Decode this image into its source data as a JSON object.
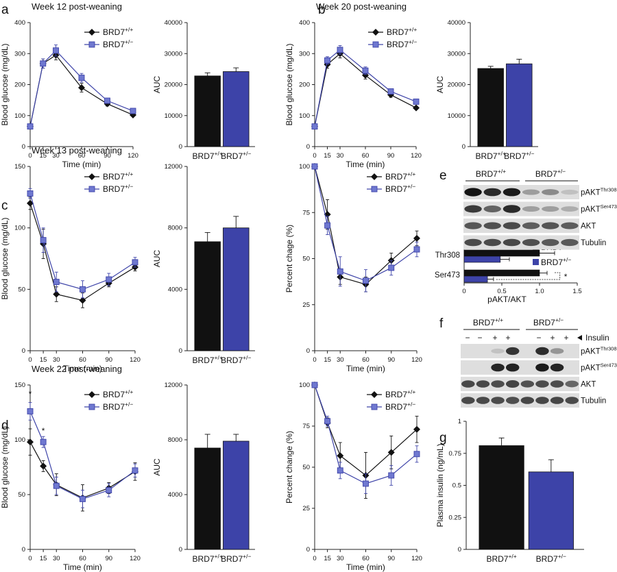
{
  "colors": {
    "wt": "#111111",
    "het": "#3d43a8",
    "het_marker": "#6f78d0"
  },
  "chart_data": [
    {
      "id": "a_line",
      "type": "line",
      "panel": "a",
      "title": "Week 12 post-weaning",
      "xlabel": "Time (min)",
      "ylabel": "Blood glucose (mg/dL)",
      "x": [
        0,
        15,
        30,
        60,
        90,
        120
      ],
      "ylim": [
        0,
        400
      ],
      "yticks": [
        0,
        100,
        200,
        300,
        400
      ],
      "series": [
        {
          "name": "BRD7",
          "sup": "+/+",
          "marker": "diamond",
          "values": [
            65,
            268,
            295,
            190,
            138,
            102
          ],
          "err": [
            5,
            15,
            15,
            14,
            7,
            5
          ]
        },
        {
          "name": "BRD7",
          "sup": "+/−",
          "marker": "square",
          "values": [
            65,
            268,
            310,
            222,
            148,
            115
          ],
          "err": [
            5,
            15,
            18,
            14,
            7,
            6
          ]
        }
      ]
    },
    {
      "id": "a_bar",
      "type": "bar",
      "panel": "a",
      "ylabel": "AUC",
      "categories": [
        "BRD7+/+",
        "BRD7+/−"
      ],
      "cat_base": [
        "BRD7",
        "BRD7"
      ],
      "cat_sup": [
        "+/+",
        "+/−"
      ],
      "values": [
        22800,
        24200
      ],
      "err": [
        1000,
        1200
      ],
      "ylim": [
        0,
        40000
      ],
      "yticks": [
        0,
        10000,
        20000,
        30000,
        40000
      ]
    },
    {
      "id": "b_line",
      "type": "line",
      "panel": "b",
      "title": "Week 20 post-weaning",
      "xlabel": "Time (min)",
      "ylabel": "Blood glucose (mg/dL)",
      "x": [
        0,
        15,
        30,
        60,
        90,
        120
      ],
      "ylim": [
        0,
        400
      ],
      "yticks": [
        0,
        100,
        200,
        300,
        400
      ],
      "series": [
        {
          "name": "BRD7",
          "sup": "+/+",
          "marker": "diamond",
          "values": [
            65,
            265,
            300,
            230,
            167,
            125
          ],
          "err": [
            5,
            12,
            14,
            12,
            8,
            5
          ]
        },
        {
          "name": "BRD7",
          "sup": "+/−",
          "marker": "square",
          "values": [
            65,
            278,
            312,
            245,
            178,
            145
          ],
          "err": [
            5,
            12,
            14,
            12,
            8,
            6
          ]
        }
      ]
    },
    {
      "id": "b_bar",
      "type": "bar",
      "panel": "b",
      "ylabel": "AUC",
      "categories": [
        "BRD7+/+",
        "BRD7+/−"
      ],
      "cat_base": [
        "BRD7",
        "BRD7"
      ],
      "cat_sup": [
        "+/+",
        "+/−"
      ],
      "values": [
        25200,
        26700
      ],
      "err": [
        700,
        1500
      ],
      "ylim": [
        0,
        40000
      ],
      "yticks": [
        0,
        10000,
        20000,
        30000,
        40000
      ]
    },
    {
      "id": "c_line",
      "type": "line",
      "panel": "c",
      "title": "Week 13 post-weaning",
      "xlabel": "Time (min)",
      "ylabel": "Blood glucose (mg/dL)",
      "x": [
        0,
        15,
        30,
        60,
        90,
        120
      ],
      "ylim": [
        0,
        150
      ],
      "yticks": [
        0,
        50,
        100,
        150
      ],
      "series": [
        {
          "name": "BRD7",
          "sup": "+/+",
          "marker": "diamond",
          "values": [
            120,
            87,
            46,
            41,
            55,
            68
          ],
          "err": [
            5,
            12,
            6,
            6,
            3,
            3
          ]
        },
        {
          "name": "BRD7",
          "sup": "+/−",
          "marker": "square",
          "values": [
            128,
            90,
            56,
            50,
            58,
            72
          ],
          "err": [
            4,
            10,
            8,
            7,
            5,
            4
          ]
        }
      ]
    },
    {
      "id": "c_bar",
      "type": "bar",
      "panel": "c",
      "ylabel": "AUC",
      "categories": [
        "BRD7+/+",
        "BRD7+/−"
      ],
      "cat_base": [
        "BRD7",
        "BRD7"
      ],
      "cat_sup": [
        "+/+",
        "+/−"
      ],
      "values": [
        7100,
        8000
      ],
      "err": [
        600,
        750
      ],
      "ylim": [
        0,
        12000
      ],
      "yticks": [
        0,
        4000,
        8000,
        12000
      ]
    },
    {
      "id": "c_pct",
      "type": "line",
      "panel": "c",
      "xlabel": "Time (min)",
      "ylabel": "Percent chage (%)",
      "x": [
        0,
        15,
        30,
        60,
        90,
        120
      ],
      "ylim": [
        0,
        100
      ],
      "yticks": [
        0,
        25,
        50,
        75,
        100
      ],
      "series": [
        {
          "name": "BRD7",
          "sup": "+/+",
          "marker": "diamond",
          "values": [
            100,
            74,
            40,
            36,
            49,
            61
          ],
          "err": [
            0,
            8,
            4,
            4,
            4,
            4
          ]
        },
        {
          "name": "BRD7",
          "sup": "+/−",
          "marker": "square",
          "values": [
            100,
            68,
            43,
            38,
            45,
            55
          ],
          "err": [
            0,
            5,
            8,
            6,
            4,
            4
          ]
        }
      ]
    },
    {
      "id": "d_line",
      "type": "line",
      "panel": "d",
      "title": "Week 22 post-weaning",
      "xlabel": "Time (min)",
      "ylabel": "Blood glucose (mg/dL)",
      "x": [
        0,
        15,
        30,
        60,
        90,
        120
      ],
      "ylim": [
        0,
        150
      ],
      "yticks": [
        0,
        50,
        100,
        150
      ],
      "stars": [
        {
          "x": 0,
          "y": 142
        },
        {
          "x": 15,
          "y": 108
        }
      ],
      "series": [
        {
          "name": "BRD7",
          "sup": "+/+",
          "marker": "diamond",
          "values": [
            98,
            76,
            59,
            47,
            56,
            71
          ],
          "err": [
            12,
            5,
            10,
            12,
            5,
            8
          ]
        },
        {
          "name": "BRD7",
          "sup": "+/−",
          "marker": "square",
          "values": [
            126,
            98,
            58,
            46,
            54,
            72
          ],
          "err": [
            8,
            5,
            8,
            8,
            6,
            6
          ]
        }
      ]
    },
    {
      "id": "d_bar",
      "type": "bar",
      "panel": "d",
      "ylabel": "AUC",
      "categories": [
        "BRD7+/+",
        "BRD7+/−"
      ],
      "cat_base": [
        "BRD7",
        "BRD7"
      ],
      "cat_sup": [
        "+/+",
        "+/−"
      ],
      "values": [
        7400,
        7900
      ],
      "err": [
        1000,
        500
      ],
      "ylim": [
        0,
        12000
      ],
      "yticks": [
        0,
        4000,
        8000,
        12000
      ]
    },
    {
      "id": "d_pct",
      "type": "line",
      "panel": "d",
      "xlabel": "Time (min)",
      "ylabel": "Percent change (%)",
      "x": [
        0,
        15,
        30,
        60,
        90,
        120
      ],
      "ylim": [
        0,
        100
      ],
      "yticks": [
        0,
        25,
        50,
        75,
        100
      ],
      "series": [
        {
          "name": "BRD7",
          "sup": "+/+",
          "marker": "diamond",
          "values": [
            100,
            77,
            57,
            45,
            59,
            73
          ],
          "err": [
            0,
            3,
            8,
            14,
            10,
            8
          ]
        },
        {
          "name": "BRD7",
          "sup": "+/−",
          "marker": "square",
          "values": [
            100,
            78,
            48,
            40,
            45,
            58
          ],
          "err": [
            0,
            3,
            5,
            6,
            6,
            5
          ]
        }
      ]
    },
    {
      "id": "e_hbar",
      "type": "bar",
      "orientation": "horizontal",
      "panel": "e",
      "xlabel": "pAKT/AKT",
      "categories": [
        "Thr308",
        "Ser473"
      ],
      "xlim": [
        0,
        1.5
      ],
      "xticks": [
        0,
        0.5,
        1.0,
        1.5
      ],
      "tick_labels": [
        "0",
        "0.5",
        "1.0",
        "1.5"
      ],
      "series": [
        {
          "name": "BRD7",
          "sup": "+/+",
          "values": [
            1.0,
            1.0
          ],
          "err": [
            0.2,
            0.1
          ]
        },
        {
          "name": "BRD7",
          "sup": "+/−",
          "values": [
            0.48,
            0.31
          ],
          "err": [
            0.12,
            0.08
          ]
        }
      ],
      "star": "*"
    },
    {
      "id": "g_bar",
      "type": "bar",
      "panel": "g",
      "ylabel": "Plasma insulin (ng/mL)",
      "categories": [
        "BRD7+/+",
        "BRD7+/−"
      ],
      "cat_base": [
        "BRD7",
        "BRD7"
      ],
      "cat_sup": [
        "+/+",
        "+/−"
      ],
      "values": [
        0.81,
        0.605
      ],
      "err": [
        0.06,
        0.095
      ],
      "ylim": [
        0,
        1
      ],
      "yticks": [
        0,
        0.25,
        0.5,
        0.75,
        1
      ],
      "tick_labels": [
        "0",
        "0.25",
        "0.5",
        "0.75",
        "1"
      ]
    }
  ],
  "panel_letters": [
    "a",
    "b",
    "c",
    "d",
    "e",
    "f",
    "g"
  ],
  "blots": {
    "e": {
      "groups": [
        {
          "name": "BRD7",
          "sup": "+/+"
        },
        {
          "name": "BRD7",
          "sup": "+/−"
        }
      ],
      "rows": [
        {
          "name": "pAKT",
          "sup": "Thr308"
        },
        {
          "name": "pAKT",
          "sup": "Ser473"
        },
        {
          "name": "AKT",
          "sup": ""
        },
        {
          "name": "Tubulin",
          "sup": ""
        }
      ]
    },
    "f": {
      "groups": [
        {
          "name": "BRD7",
          "sup": "+/+"
        },
        {
          "name": "BRD7",
          "sup": "+/−"
        }
      ],
      "treatment": "Insulin",
      "signs": [
        "−",
        "−",
        "+",
        "+",
        "−",
        "+",
        "+"
      ],
      "rows": [
        {
          "name": "pAKT",
          "sup": "Thr308"
        },
        {
          "name": "pAKT",
          "sup": "Ser473"
        },
        {
          "name": "AKT",
          "sup": ""
        },
        {
          "name": "Tubulin",
          "sup": ""
        }
      ]
    }
  }
}
